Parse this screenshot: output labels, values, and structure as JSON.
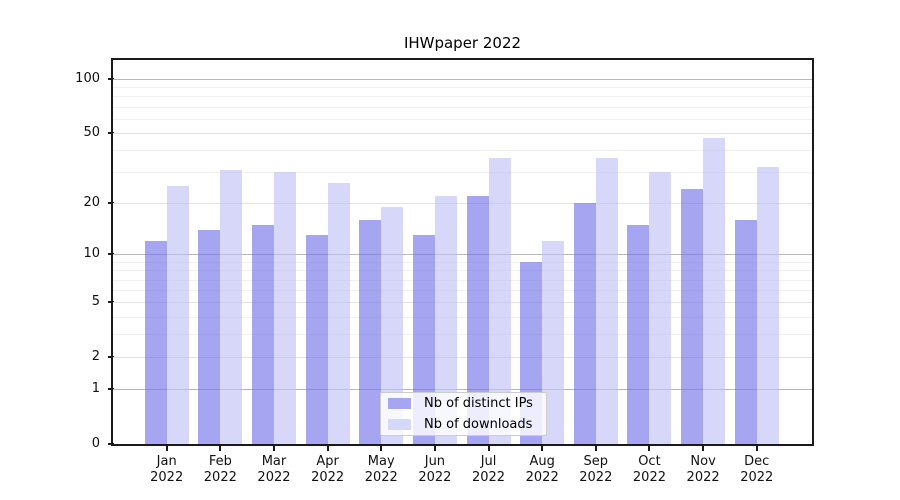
{
  "chart_data": {
    "type": "bar",
    "title": "IHWpaper 2022",
    "categories": [
      "Jan 2022",
      "Feb 2022",
      "Mar 2022",
      "Apr 2022",
      "May 2022",
      "Jun 2022",
      "Jul 2022",
      "Aug 2022",
      "Sep 2022",
      "Oct 2022",
      "Nov 2022",
      "Dec 2022"
    ],
    "series": [
      {
        "name": "Nb of distinct IPs",
        "color": "#a5a5f2",
        "values": [
          12,
          14,
          15,
          13,
          16,
          13,
          22,
          9,
          20,
          15,
          24,
          16
        ]
      },
      {
        "name": "Nb of downloads",
        "color": "#d7d7f9",
        "values": [
          25,
          31,
          30,
          26,
          19,
          22,
          36,
          12,
          36,
          30,
          47,
          32
        ]
      }
    ],
    "xlabel": "",
    "ylabel": "",
    "yscale": "symlog",
    "ylim": [
      0,
      127
    ],
    "yticks": [
      0,
      1,
      2,
      5,
      10,
      20,
      50,
      100
    ],
    "yticks_minor": [
      3,
      4,
      6,
      7,
      8,
      9,
      30,
      40,
      60,
      70,
      80,
      90
    ],
    "grid": "on",
    "legend_position": "lower center"
  },
  "colors": {
    "grid_power": "#b8b8b8",
    "grid_mid": "#e2e2e2",
    "grid_minor": "#f0f0f0",
    "spine": "#1a1a1a",
    "text": "#111111"
  }
}
